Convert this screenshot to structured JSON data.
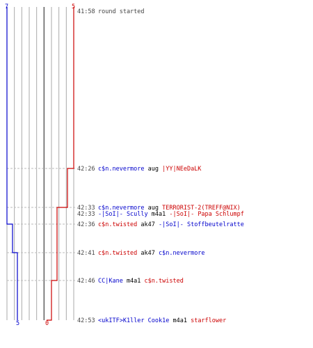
{
  "colors": {
    "team_blue": "#0000cc",
    "team_red": "#cc0000",
    "neutral": "#000000",
    "time": "#444444",
    "grid": "#aaaaaa",
    "center_line": "#666666",
    "guide": "#bbbbbb"
  },
  "axis": {
    "blue_start": "7",
    "red_start": "5",
    "blue_end": "5",
    "red_end": "0"
  },
  "chart_data": {
    "type": "line",
    "x_label": "",
    "y_label": "",
    "player_range": [
      0,
      9
    ],
    "series": [
      {
        "name": "",
        "team": "blue",
        "points": [
          {
            "t": "41:58",
            "count": 7
          },
          {
            "t": "42:36",
            "count": 6
          },
          {
            "t": "42:41",
            "count": 5
          },
          {
            "t": "42:53",
            "count": 5
          }
        ]
      },
      {
        "name": "",
        "team": "red",
        "points": [
          {
            "t": "41:58",
            "count": 5
          },
          {
            "t": "42:26",
            "count": 4
          },
          {
            "t": "42:33",
            "count": 2
          },
          {
            "t": "42:46",
            "count": 1
          },
          {
            "t": "42:53",
            "count": 0
          }
        ]
      }
    ]
  },
  "events": [
    {
      "time": "41:58",
      "parts": [
        {
          "text": "round started",
          "team": "time"
        }
      ]
    },
    {
      "time": "42:26",
      "parts": [
        {
          "text": "c$n.nevermore",
          "team": "blue"
        },
        {
          "text": " aug ",
          "team": "neutral"
        },
        {
          "text": "|YY|NEeDaLK",
          "team": "red"
        }
      ]
    },
    {
      "time": "42:33",
      "parts": [
        {
          "text": "c$n.nevermore",
          "team": "blue"
        },
        {
          "text": " aug ",
          "team": "neutral"
        },
        {
          "text": "TERRORIST-2(TREFF@NIX)",
          "team": "red"
        }
      ]
    },
    {
      "time": "42:33",
      "parts": [
        {
          "text": "-|SoI|- Scully",
          "team": "blue"
        },
        {
          "text": " m4a1 ",
          "team": "neutral"
        },
        {
          "text": "-|SoI|- Papa Schlumpf",
          "team": "red"
        }
      ]
    },
    {
      "time": "42:36",
      "parts": [
        {
          "text": "c$n.twisted",
          "team": "red"
        },
        {
          "text": " ak47 ",
          "team": "neutral"
        },
        {
          "text": "-|SoI|- Stoffbeutelratte",
          "team": "blue"
        }
      ]
    },
    {
      "time": "42:41",
      "parts": [
        {
          "text": "c$n.twisted",
          "team": "red"
        },
        {
          "text": " ak47 ",
          "team": "neutral"
        },
        {
          "text": "c$n.nevermore",
          "team": "blue"
        }
      ]
    },
    {
      "time": "42:46",
      "parts": [
        {
          "text": "CC|Kane",
          "team": "blue"
        },
        {
          "text": " m4a1 ",
          "team": "neutral"
        },
        {
          "text": "c$n.twisted",
          "team": "red"
        }
      ]
    },
    {
      "time": "42:53",
      "parts": [
        {
          "text": "<ukITF>K1ller Cook1e",
          "team": "blue"
        },
        {
          "text": " m4a1 ",
          "team": "neutral"
        },
        {
          "text": "starflower",
          "team": "red"
        }
      ]
    }
  ]
}
